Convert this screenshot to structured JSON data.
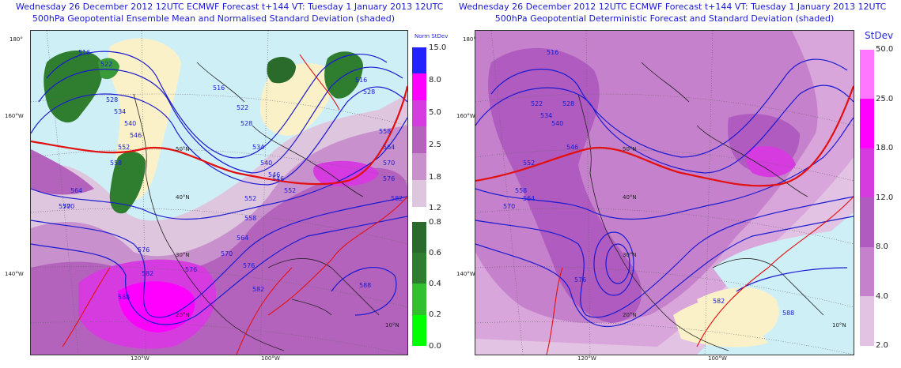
{
  "left": {
    "title_line1": "Wednesday 26 December 2012 12UTC ECMWF Forecast t+144  VT: Tuesday 1 January 2013 12UTC",
    "title_line2": "500hPa Geopotential Ensemble Mean and Normalised Standard Deviation (shaded)",
    "colorbar_title": "Norm StDev",
    "colorbar_upper": [
      "15.0",
      "8.0",
      "5.0",
      "2.5",
      "1.8",
      "1.2"
    ],
    "colorbar_lower": [
      "0.8",
      "0.6",
      "0.4",
      "0.2",
      "0.0"
    ],
    "colors": {
      "s1": "#dfc6df",
      "s2": "#c891cd",
      "s3": "#b463bd",
      "s4": "#d63be0",
      "s5": "#ff00ff",
      "s6": "#2222ff",
      "g1": "#00ff00",
      "g2": "#30c030",
      "g3": "#3a9a3a",
      "g4": "#2f7d2f",
      "g5": "#2a6a2a"
    },
    "contour_labels": [
      "516",
      "522",
      "528",
      "534",
      "540",
      "546",
      "552",
      "558",
      "564",
      "570",
      "576",
      "582",
      "588",
      "516",
      "522",
      "528",
      "534",
      "540",
      "546",
      "552",
      "558",
      "564",
      "570",
      "576",
      "582",
      "516",
      "528",
      "546",
      "552",
      "558",
      "564",
      "570",
      "576",
      "582",
      "588",
      "570",
      "576"
    ],
    "geo_labels": [
      "180°",
      "160°W",
      "140°W",
      "120°W",
      "100°W",
      "50°N",
      "40°N",
      "30°N",
      "20°N",
      "10°N"
    ]
  },
  "right": {
    "title_line1": "Wednesday 26 December 2012 12UTC ECMWF Forecast t+144  VT: Tuesday 1 January 2013 12UTC",
    "title_line2": "500hPa Geopotential Deterministic Forecast and Standard Deviation (shaded)",
    "colorbar_title": "StDev",
    "colorbar_ticks": [
      "50.0",
      "25.0",
      "18.0",
      "12.0",
      "8.0",
      "4.0",
      "2.0"
    ],
    "colors": {
      "c1": "#e3c3e3",
      "c2": "#d8a6da",
      "c3": "#c681cc",
      "c4": "#b05bbf",
      "c5": "#d63be0",
      "c6": "#ff00ff",
      "c7": "#ff77ff"
    },
    "contour_labels": [
      "516",
      "522",
      "528",
      "534",
      "540",
      "546",
      "552",
      "558",
      "564",
      "570",
      "576",
      "582",
      "588"
    ],
    "geo_labels": [
      "180°",
      "160°W",
      "140°W",
      "120°W",
      "100°W",
      "50°N",
      "40°N",
      "30°N",
      "20°N",
      "10°N"
    ]
  }
}
